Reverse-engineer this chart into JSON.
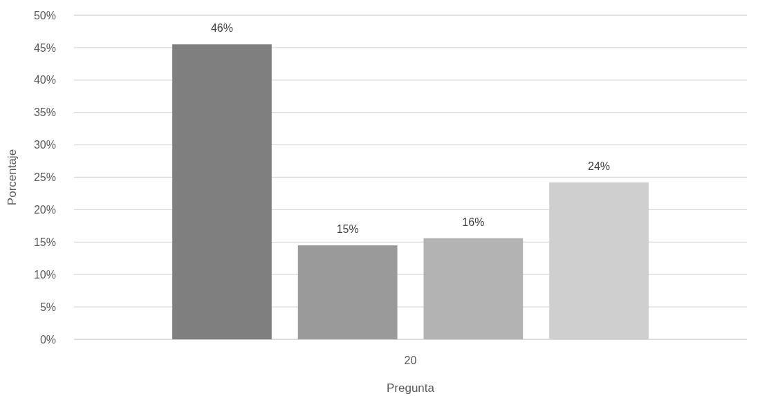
{
  "chart_data": {
    "type": "bar",
    "xlabel": "Pregunta",
    "ylabel": "Porcentaje",
    "categories": [
      "20"
    ],
    "series": [
      {
        "color": "#7f7f7f",
        "values": [
          45.5
        ],
        "value_labels": [
          "46%"
        ]
      },
      {
        "color": "#9a9a9a",
        "values": [
          14.5
        ],
        "value_labels": [
          "15%"
        ]
      },
      {
        "color": "#b3b3b3",
        "values": [
          15.6
        ],
        "value_labels": [
          "16%"
        ]
      },
      {
        "color": "#cfcfcf",
        "values": [
          24.2
        ],
        "value_labels": [
          "24%"
        ]
      }
    ],
    "ylim": [
      0,
      50
    ],
    "yticks": [
      {
        "value": 0,
        "label": "0%"
      },
      {
        "value": 5,
        "label": "5%"
      },
      {
        "value": 10,
        "label": "10%"
      },
      {
        "value": 15,
        "label": "15%"
      },
      {
        "value": 20,
        "label": "20%"
      },
      {
        "value": 25,
        "label": "25%"
      },
      {
        "value": 30,
        "label": "30%"
      },
      {
        "value": 35,
        "label": "35%"
      },
      {
        "value": 40,
        "label": "40%"
      },
      {
        "value": 45,
        "label": "45%"
      },
      {
        "value": 50,
        "label": "50%"
      }
    ],
    "grid": "y"
  }
}
